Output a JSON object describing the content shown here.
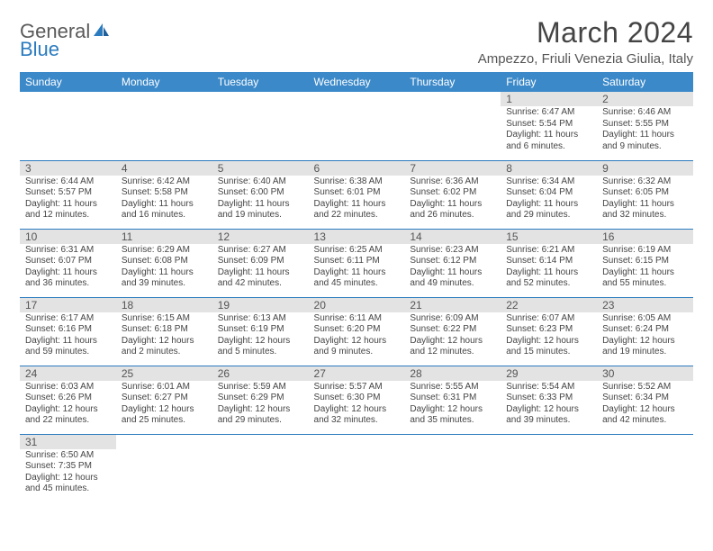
{
  "logo": {
    "text1": "Genera",
    "text2": "Blue",
    "text_prefix": "l"
  },
  "title": "March 2024",
  "subtitle": "Ampezzo, Friuli Venezia Giulia, Italy",
  "colors": {
    "header_bg": "#3b89c9",
    "border": "#2b7bbf",
    "daynum_bg": "#e3e3e3",
    "text": "#444444"
  },
  "weekdays": [
    "Sunday",
    "Monday",
    "Tuesday",
    "Wednesday",
    "Thursday",
    "Friday",
    "Saturday"
  ],
  "weeks": [
    [
      {
        "n": "",
        "sr": "",
        "ss": "",
        "dl": ""
      },
      {
        "n": "",
        "sr": "",
        "ss": "",
        "dl": ""
      },
      {
        "n": "",
        "sr": "",
        "ss": "",
        "dl": ""
      },
      {
        "n": "",
        "sr": "",
        "ss": "",
        "dl": ""
      },
      {
        "n": "",
        "sr": "",
        "ss": "",
        "dl": ""
      },
      {
        "n": "1",
        "sr": "Sunrise: 6:47 AM",
        "ss": "Sunset: 5:54 PM",
        "dl": "Daylight: 11 hours and 6 minutes."
      },
      {
        "n": "2",
        "sr": "Sunrise: 6:46 AM",
        "ss": "Sunset: 5:55 PM",
        "dl": "Daylight: 11 hours and 9 minutes."
      }
    ],
    [
      {
        "n": "3",
        "sr": "Sunrise: 6:44 AM",
        "ss": "Sunset: 5:57 PM",
        "dl": "Daylight: 11 hours and 12 minutes."
      },
      {
        "n": "4",
        "sr": "Sunrise: 6:42 AM",
        "ss": "Sunset: 5:58 PM",
        "dl": "Daylight: 11 hours and 16 minutes."
      },
      {
        "n": "5",
        "sr": "Sunrise: 6:40 AM",
        "ss": "Sunset: 6:00 PM",
        "dl": "Daylight: 11 hours and 19 minutes."
      },
      {
        "n": "6",
        "sr": "Sunrise: 6:38 AM",
        "ss": "Sunset: 6:01 PM",
        "dl": "Daylight: 11 hours and 22 minutes."
      },
      {
        "n": "7",
        "sr": "Sunrise: 6:36 AM",
        "ss": "Sunset: 6:02 PM",
        "dl": "Daylight: 11 hours and 26 minutes."
      },
      {
        "n": "8",
        "sr": "Sunrise: 6:34 AM",
        "ss": "Sunset: 6:04 PM",
        "dl": "Daylight: 11 hours and 29 minutes."
      },
      {
        "n": "9",
        "sr": "Sunrise: 6:32 AM",
        "ss": "Sunset: 6:05 PM",
        "dl": "Daylight: 11 hours and 32 minutes."
      }
    ],
    [
      {
        "n": "10",
        "sr": "Sunrise: 6:31 AM",
        "ss": "Sunset: 6:07 PM",
        "dl": "Daylight: 11 hours and 36 minutes."
      },
      {
        "n": "11",
        "sr": "Sunrise: 6:29 AM",
        "ss": "Sunset: 6:08 PM",
        "dl": "Daylight: 11 hours and 39 minutes."
      },
      {
        "n": "12",
        "sr": "Sunrise: 6:27 AM",
        "ss": "Sunset: 6:09 PM",
        "dl": "Daylight: 11 hours and 42 minutes."
      },
      {
        "n": "13",
        "sr": "Sunrise: 6:25 AM",
        "ss": "Sunset: 6:11 PM",
        "dl": "Daylight: 11 hours and 45 minutes."
      },
      {
        "n": "14",
        "sr": "Sunrise: 6:23 AM",
        "ss": "Sunset: 6:12 PM",
        "dl": "Daylight: 11 hours and 49 minutes."
      },
      {
        "n": "15",
        "sr": "Sunrise: 6:21 AM",
        "ss": "Sunset: 6:14 PM",
        "dl": "Daylight: 11 hours and 52 minutes."
      },
      {
        "n": "16",
        "sr": "Sunrise: 6:19 AM",
        "ss": "Sunset: 6:15 PM",
        "dl": "Daylight: 11 hours and 55 minutes."
      }
    ],
    [
      {
        "n": "17",
        "sr": "Sunrise: 6:17 AM",
        "ss": "Sunset: 6:16 PM",
        "dl": "Daylight: 11 hours and 59 minutes."
      },
      {
        "n": "18",
        "sr": "Sunrise: 6:15 AM",
        "ss": "Sunset: 6:18 PM",
        "dl": "Daylight: 12 hours and 2 minutes."
      },
      {
        "n": "19",
        "sr": "Sunrise: 6:13 AM",
        "ss": "Sunset: 6:19 PM",
        "dl": "Daylight: 12 hours and 5 minutes."
      },
      {
        "n": "20",
        "sr": "Sunrise: 6:11 AM",
        "ss": "Sunset: 6:20 PM",
        "dl": "Daylight: 12 hours and 9 minutes."
      },
      {
        "n": "21",
        "sr": "Sunrise: 6:09 AM",
        "ss": "Sunset: 6:22 PM",
        "dl": "Daylight: 12 hours and 12 minutes."
      },
      {
        "n": "22",
        "sr": "Sunrise: 6:07 AM",
        "ss": "Sunset: 6:23 PM",
        "dl": "Daylight: 12 hours and 15 minutes."
      },
      {
        "n": "23",
        "sr": "Sunrise: 6:05 AM",
        "ss": "Sunset: 6:24 PM",
        "dl": "Daylight: 12 hours and 19 minutes."
      }
    ],
    [
      {
        "n": "24",
        "sr": "Sunrise: 6:03 AM",
        "ss": "Sunset: 6:26 PM",
        "dl": "Daylight: 12 hours and 22 minutes."
      },
      {
        "n": "25",
        "sr": "Sunrise: 6:01 AM",
        "ss": "Sunset: 6:27 PM",
        "dl": "Daylight: 12 hours and 25 minutes."
      },
      {
        "n": "26",
        "sr": "Sunrise: 5:59 AM",
        "ss": "Sunset: 6:29 PM",
        "dl": "Daylight: 12 hours and 29 minutes."
      },
      {
        "n": "27",
        "sr": "Sunrise: 5:57 AM",
        "ss": "Sunset: 6:30 PM",
        "dl": "Daylight: 12 hours and 32 minutes."
      },
      {
        "n": "28",
        "sr": "Sunrise: 5:55 AM",
        "ss": "Sunset: 6:31 PM",
        "dl": "Daylight: 12 hours and 35 minutes."
      },
      {
        "n": "29",
        "sr": "Sunrise: 5:54 AM",
        "ss": "Sunset: 6:33 PM",
        "dl": "Daylight: 12 hours and 39 minutes."
      },
      {
        "n": "30",
        "sr": "Sunrise: 5:52 AM",
        "ss": "Sunset: 6:34 PM",
        "dl": "Daylight: 12 hours and 42 minutes."
      }
    ],
    [
      {
        "n": "31",
        "sr": "Sunrise: 6:50 AM",
        "ss": "Sunset: 7:35 PM",
        "dl": "Daylight: 12 hours and 45 minutes."
      },
      {
        "n": "",
        "sr": "",
        "ss": "",
        "dl": ""
      },
      {
        "n": "",
        "sr": "",
        "ss": "",
        "dl": ""
      },
      {
        "n": "",
        "sr": "",
        "ss": "",
        "dl": ""
      },
      {
        "n": "",
        "sr": "",
        "ss": "",
        "dl": ""
      },
      {
        "n": "",
        "sr": "",
        "ss": "",
        "dl": ""
      },
      {
        "n": "",
        "sr": "",
        "ss": "",
        "dl": ""
      }
    ]
  ]
}
